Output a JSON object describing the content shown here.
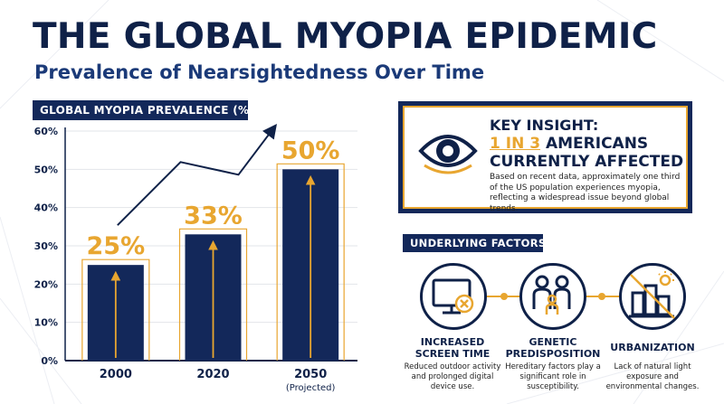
{
  "title": "THE GLOBAL MYOPIA EPIDEMIC",
  "subtitle": "Prevalence of Nearsightedness Over Time",
  "chart_data": {
    "type": "bar",
    "title": "GLOBAL MYOPIA PREVALENCE (%)",
    "categories": [
      "2000",
      "2020",
      "2050"
    ],
    "category_notes": [
      "",
      "",
      "(Projected)"
    ],
    "values": [
      25,
      33,
      50
    ],
    "data_labels": [
      "25%",
      "33%",
      "50%"
    ],
    "ylim": [
      0,
      60
    ],
    "yticks": [
      "0%",
      "10%",
      "20%",
      "30%",
      "40%",
      "50%",
      "60%"
    ],
    "grid": true,
    "colors": {
      "bar": "#13285a",
      "accent": "#e8a630",
      "label": "#e8a630"
    }
  },
  "insight": {
    "title": "KEY INSIGHT:",
    "highlight": "1 IN 3",
    "line2_rest": " AMERICANS",
    "line3": "CURRENTLY AFFECTED",
    "description": "Based on recent data, approximately one third of the US population experiences myopia, reflecting a widespread issue beyond global trends.",
    "icon": "eye-icon"
  },
  "factors": {
    "header": "UNDERLYING FACTORS",
    "items": [
      {
        "icon": "screen-icon",
        "title_line1": "INCREASED",
        "title_line2": "SCREEN TIME",
        "description": "Reduced outdoor activity and prolonged digital device use."
      },
      {
        "icon": "family-icon",
        "title_line1": "GENETIC",
        "title_line2": "PREDISPOSITION",
        "description": "Hereditary factors play a significant role in susceptibility."
      },
      {
        "icon": "city-icon",
        "title_line1": "URBANIZATION",
        "title_line2": "",
        "description": "Lack of natural light exposure and environmental changes."
      }
    ]
  }
}
